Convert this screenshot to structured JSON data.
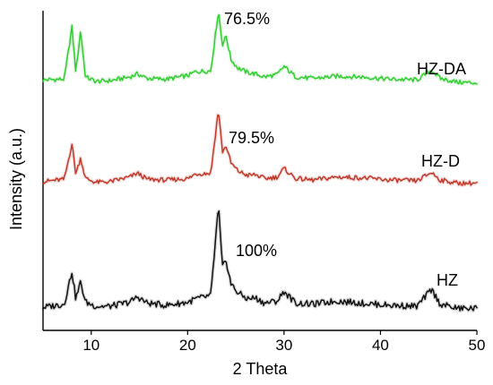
{
  "chart_data": {
    "type": "line",
    "title": "",
    "xlabel": "2 Theta",
    "ylabel": "Intensity (a.u.)",
    "xlim": [
      5,
      50
    ],
    "x_ticks": [
      10,
      20,
      30,
      40,
      50
    ],
    "x_tick_labels": [
      "10",
      "20",
      "30",
      "40",
      "50"
    ],
    "grid": false,
    "y_ticks_visible": false,
    "series": [
      {
        "name": "HZ-DA",
        "color": "#33cc33",
        "relative_intensity": 0.765,
        "x": [
          5,
          7.2,
          8.0,
          8.4,
          8.9,
          9.4,
          10.5,
          12,
          14,
          14.8,
          15.8,
          17.8,
          20.1,
          20.8,
          22.4,
          23.2,
          23.6,
          24.0,
          24.5,
          25.2,
          26.2,
          27,
          28,
          29.3,
          30.0,
          31.2,
          33,
          35.5,
          38,
          41,
          43.8,
          45.3,
          46.2,
          48,
          50
        ],
        "y": [
          0.08,
          0.09,
          0.78,
          0.18,
          0.74,
          0.12,
          0.06,
          0.07,
          0.12,
          0.16,
          0.1,
          0.09,
          0.14,
          0.19,
          0.2,
          1.0,
          0.55,
          0.66,
          0.35,
          0.24,
          0.18,
          0.16,
          0.12,
          0.15,
          0.26,
          0.12,
          0.1,
          0.13,
          0.12,
          0.09,
          0.08,
          0.21,
          0.1,
          0.05,
          0.04
        ]
      },
      {
        "name": "HZ-D",
        "color": "#c0392b",
        "relative_intensity": 0.795,
        "x": [
          5,
          7.2,
          8.0,
          8.4,
          8.9,
          9.4,
          10.5,
          12,
          14,
          14.8,
          15.8,
          17.8,
          20.1,
          20.8,
          22.4,
          23.2,
          23.6,
          24.0,
          24.5,
          25.2,
          26.2,
          27,
          28,
          29.3,
          30.0,
          31.2,
          33,
          35.5,
          38,
          41,
          43.8,
          45.3,
          46.2,
          48,
          50
        ],
        "y": [
          0.06,
          0.09,
          0.55,
          0.16,
          0.37,
          0.1,
          0.05,
          0.06,
          0.12,
          0.17,
          0.09,
          0.08,
          0.1,
          0.16,
          0.17,
          1.0,
          0.45,
          0.52,
          0.3,
          0.2,
          0.14,
          0.15,
          0.1,
          0.12,
          0.23,
          0.1,
          0.08,
          0.12,
          0.11,
          0.08,
          0.07,
          0.18,
          0.08,
          0.04,
          0.04
        ]
      },
      {
        "name": "HZ",
        "color": "#111111",
        "relative_intensity": 1.0,
        "x": [
          5,
          7.2,
          8.0,
          8.4,
          8.9,
          9.4,
          10.5,
          12,
          14,
          14.8,
          15.8,
          17.8,
          20.1,
          20.8,
          22.4,
          23.2,
          23.6,
          24.0,
          24.5,
          25.2,
          26.2,
          27,
          28,
          29.3,
          30.0,
          31.2,
          33,
          35.5,
          38,
          41,
          43.8,
          45.3,
          46.2,
          48,
          50
        ],
        "y": [
          0.04,
          0.07,
          0.38,
          0.12,
          0.28,
          0.09,
          0.05,
          0.05,
          0.09,
          0.14,
          0.08,
          0.06,
          0.09,
          0.12,
          0.15,
          1.0,
          0.42,
          0.48,
          0.26,
          0.18,
          0.12,
          0.13,
          0.08,
          0.1,
          0.19,
          0.08,
          0.07,
          0.1,
          0.08,
          0.06,
          0.05,
          0.21,
          0.07,
          0.03,
          0.03
        ]
      }
    ],
    "annotations": [
      {
        "text": "76.5%",
        "series": "HZ-DA"
      },
      {
        "text": "79.5%",
        "series": "HZ-D"
      },
      {
        "text": "100%",
        "series": "HZ"
      }
    ]
  }
}
